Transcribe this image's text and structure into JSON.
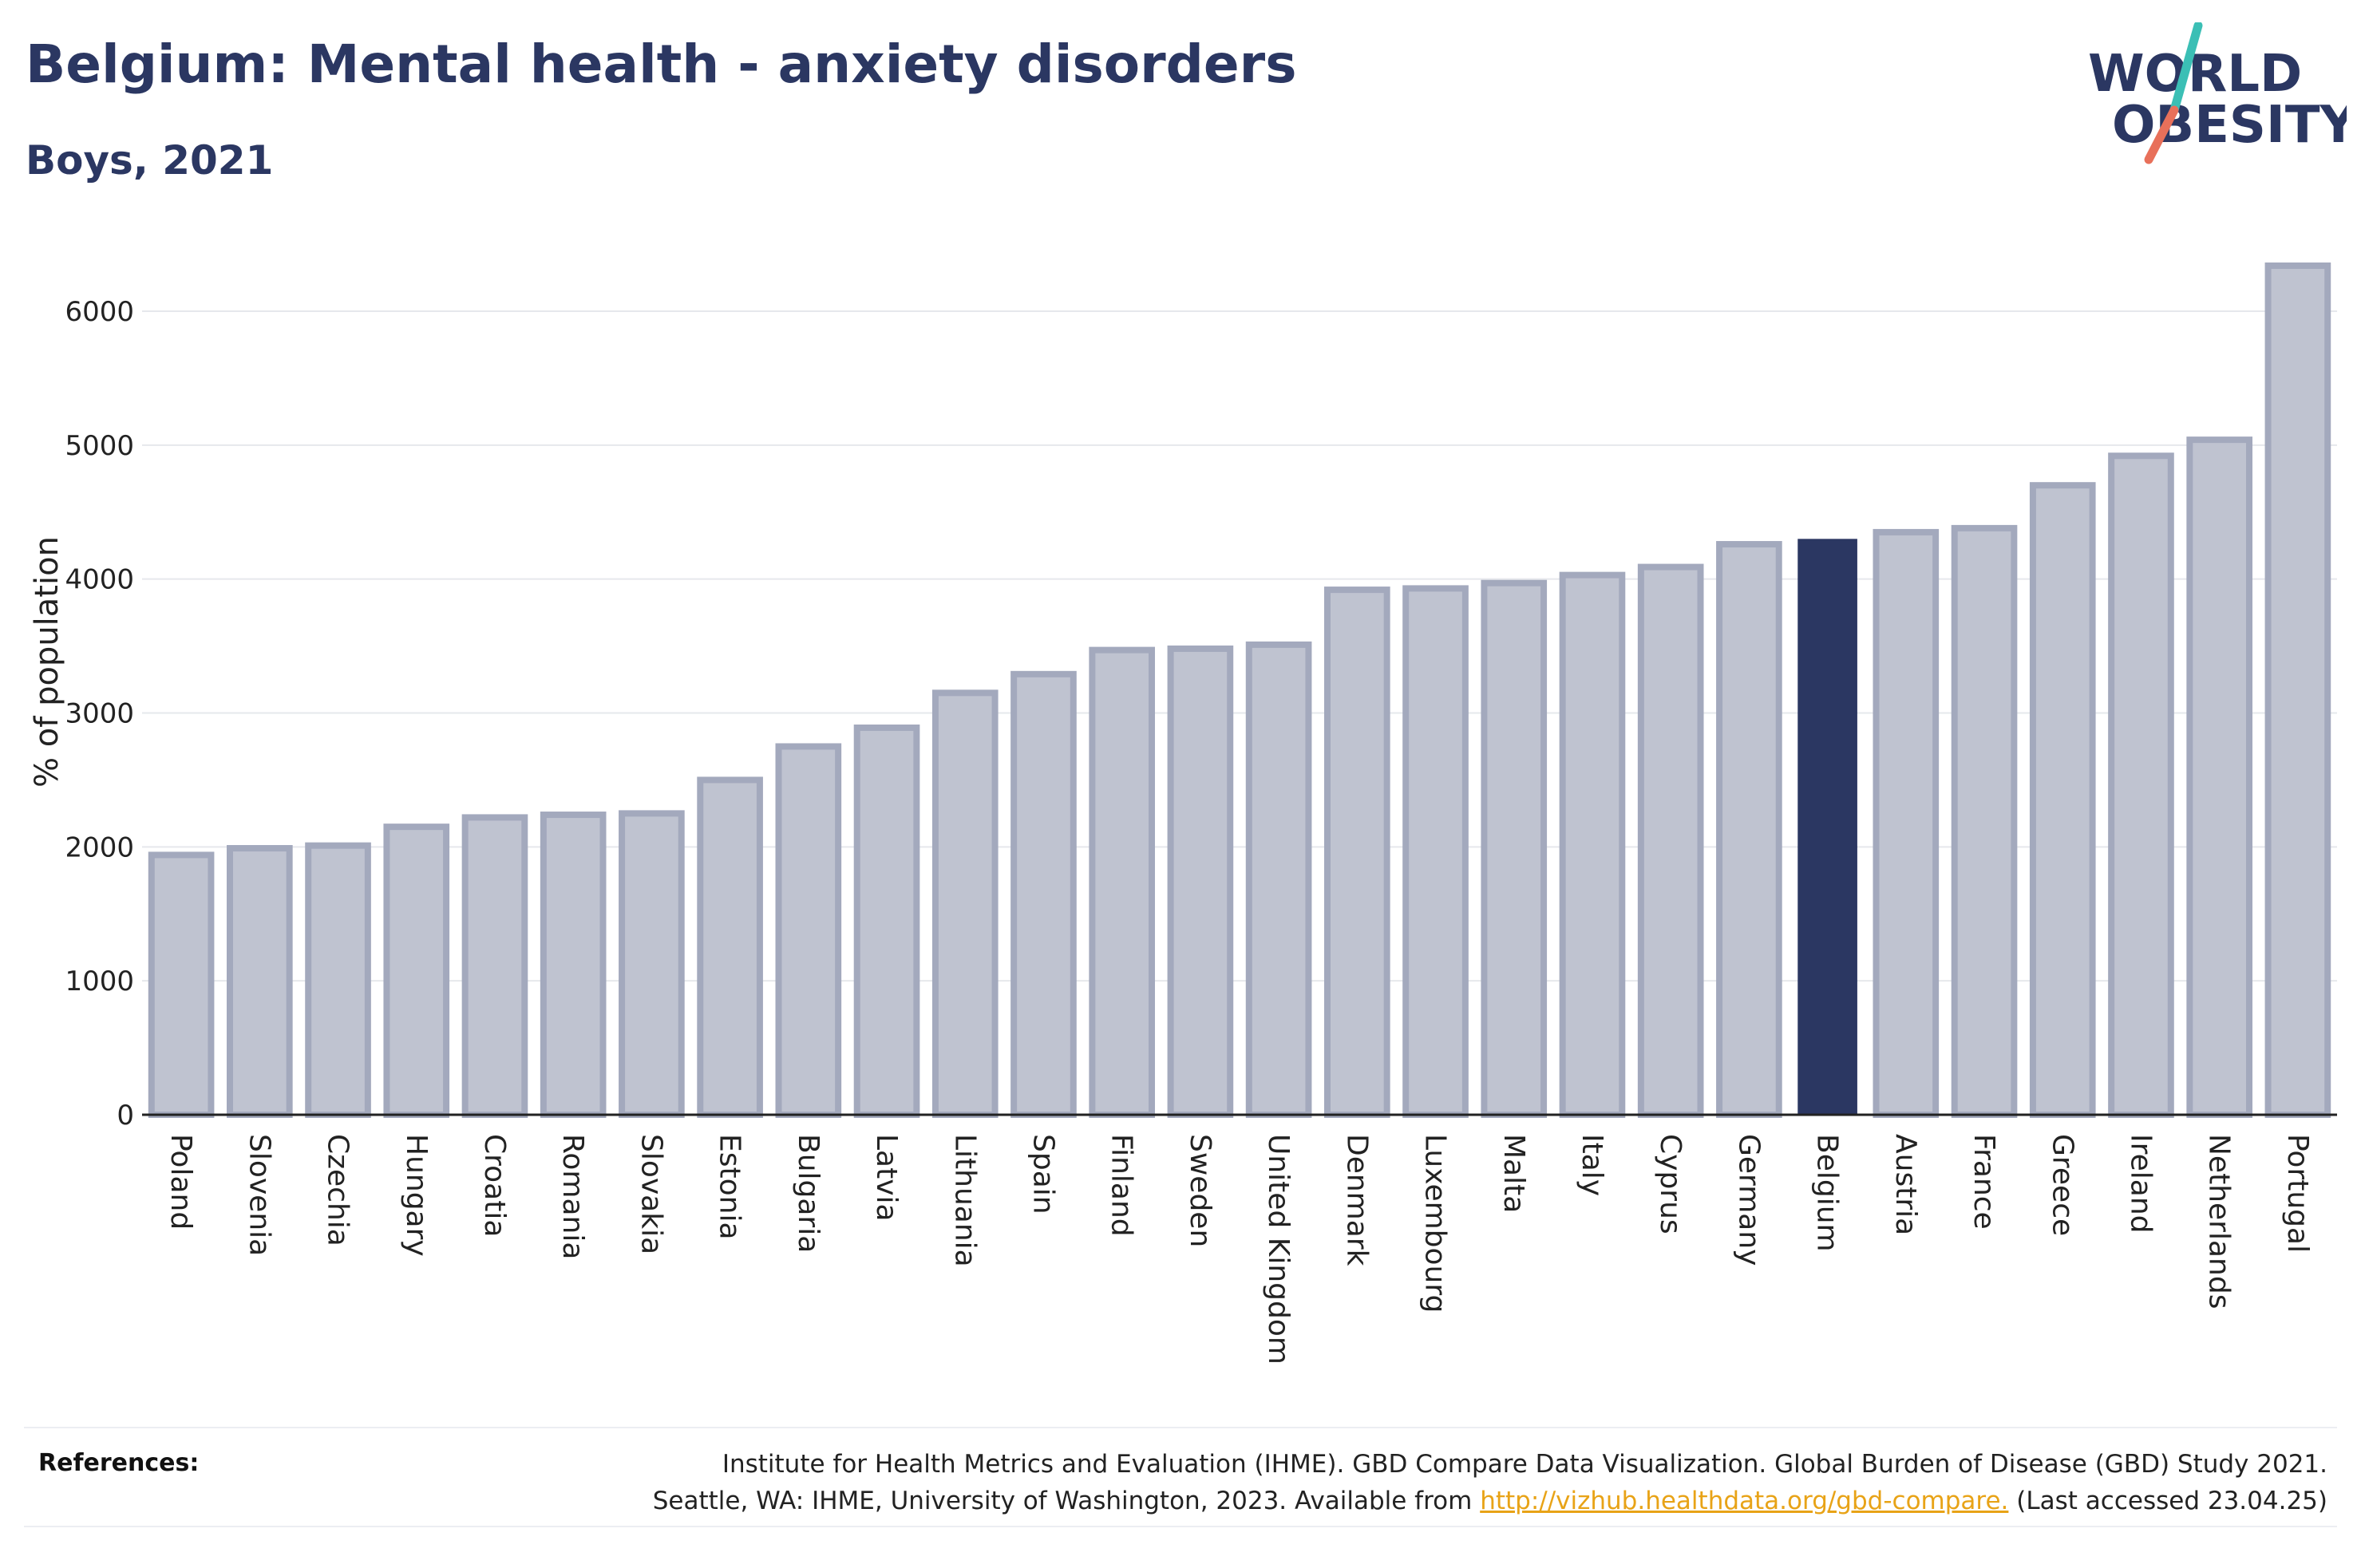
{
  "title": "Belgium: Mental health - anxiety disorders",
  "subtitle": "Boys, 2021",
  "logo": {
    "line1": "WORLD",
    "line2": "OBESITY",
    "slash_colors": [
      "#3bbfb5",
      "#e8705a"
    ],
    "text_color": "#2b3762"
  },
  "chart_data": {
    "type": "bar",
    "ylabel": "% of population",
    "xlabel": "",
    "ylim": [
      0,
      6500
    ],
    "yticks": [
      0,
      1000,
      2000,
      3000,
      4000,
      5000,
      6000
    ],
    "grid": true,
    "highlight": "Belgium",
    "colors": {
      "default_fill": "#bfc3d0",
      "default_stroke": "#a3a9bd",
      "highlight_fill": "#2b3762"
    },
    "categories": [
      "Poland",
      "Slovenia",
      "Czechia",
      "Hungary",
      "Croatia",
      "Romania",
      "Slovakia",
      "Estonia",
      "Bulgaria",
      "Latvia",
      "Lithuania",
      "Spain",
      "Finland",
      "Sweden",
      "United Kingdom",
      "Denmark",
      "Luxembourg",
      "Malta",
      "Italy",
      "Cyprus",
      "Germany",
      "Belgium",
      "Austria",
      "France",
      "Greece",
      "Ireland",
      "Netherlands",
      "Portugal"
    ],
    "values": [
      1940,
      1990,
      2010,
      2150,
      2220,
      2240,
      2250,
      2500,
      2750,
      2890,
      3150,
      3290,
      3470,
      3480,
      3510,
      3920,
      3930,
      3970,
      4030,
      4090,
      4260,
      4300,
      4350,
      4380,
      4700,
      4920,
      5040,
      6340
    ]
  },
  "references": {
    "label": "References:",
    "line1": "Institute for Health Metrics and Evaluation (IHME). GBD Compare Data Visualization. Global Burden of Disease (GBD) Study 2021.",
    "line2_prefix": "Seattle, WA: IHME, University of Washington, 2023. Available from",
    "link": "http://vizhub.healthdata.org/gbd-compare.",
    "line2_suffix": "(Last accessed 23.04.25)"
  }
}
